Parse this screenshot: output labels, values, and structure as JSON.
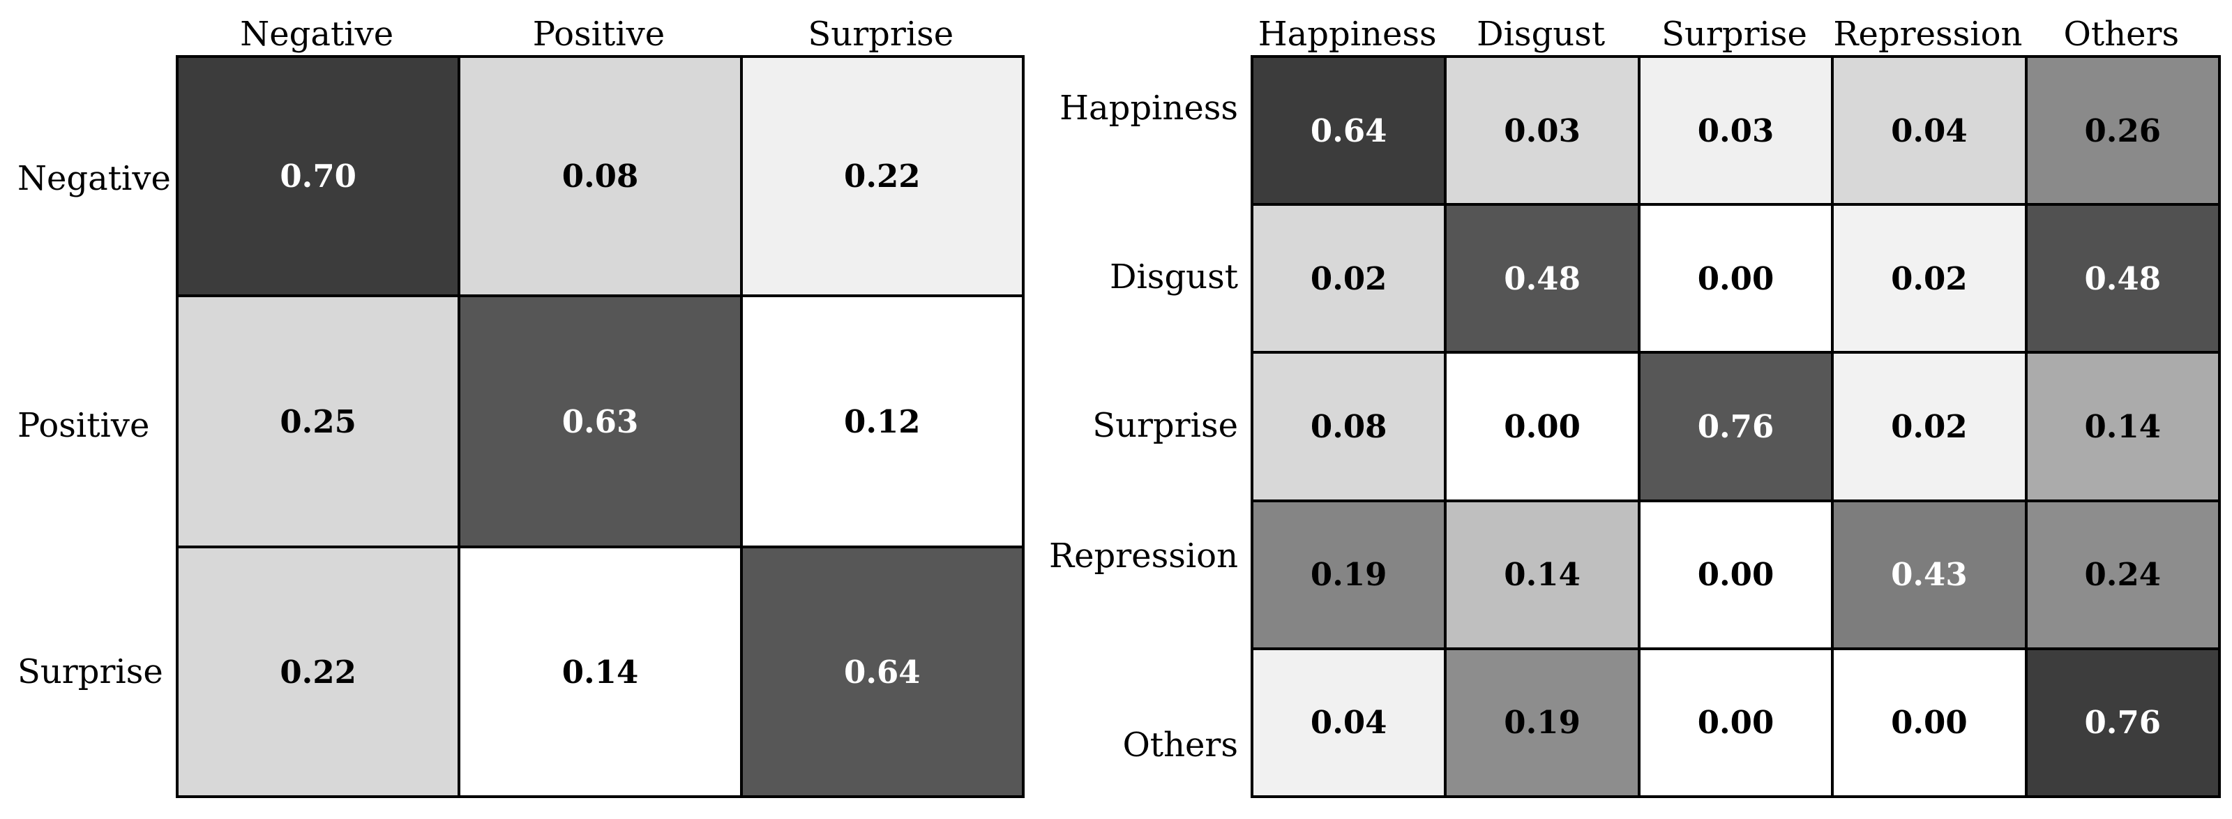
{
  "figure_type": "confusion-matrix-pair",
  "background": "#ffffff",
  "matrices": [
    {
      "name": "3-class confusion matrix",
      "col_headers": [
        "Negative",
        "Positive",
        "Surprise"
      ],
      "row_labels": [
        "Negative",
        "Positive",
        "Surprise"
      ],
      "cells": [
        [
          {
            "v": "0.70",
            "bg": "#3c3c3c",
            "fg": "#ffffff"
          },
          {
            "v": "0.08",
            "bg": "#d8d8d8",
            "fg": "#000000"
          },
          {
            "v": "0.22",
            "bg": "#f0f0f0",
            "fg": "#000000"
          }
        ],
        [
          {
            "v": "0.25",
            "bg": "#d8d8d8",
            "fg": "#000000"
          },
          {
            "v": "0.63",
            "bg": "#565656",
            "fg": "#ffffff"
          },
          {
            "v": "0.12",
            "bg": "#ffffff",
            "fg": "#000000"
          }
        ],
        [
          {
            "v": "0.22",
            "bg": "#d8d8d8",
            "fg": "#000000"
          },
          {
            "v": "0.14",
            "bg": "#ffffff",
            "fg": "#000000"
          },
          {
            "v": "0.64",
            "bg": "#575757",
            "fg": "#ffffff"
          }
        ]
      ]
    },
    {
      "name": "5-class confusion matrix",
      "col_headers": [
        "Happiness",
        "Disgust",
        "Surprise",
        "Repression",
        "Others"
      ],
      "row_labels": [
        "Happiness",
        "Disgust",
        "Surprise",
        "Repression",
        "Others"
      ],
      "cells": [
        [
          {
            "v": "0.64",
            "bg": "#3c3c3c",
            "fg": "#ffffff"
          },
          {
            "v": "0.03",
            "bg": "#d8d8d8",
            "fg": "#000000"
          },
          {
            "v": "0.03",
            "bg": "#f0f0f0",
            "fg": "#000000"
          },
          {
            "v": "0.04",
            "bg": "#d8d8d8",
            "fg": "#000000"
          },
          {
            "v": "0.26",
            "bg": "#8a8a8a",
            "fg": "#000000"
          }
        ],
        [
          {
            "v": "0.02",
            "bg": "#d8d8d8",
            "fg": "#000000"
          },
          {
            "v": "0.48",
            "bg": "#555555",
            "fg": "#ffffff"
          },
          {
            "v": "0.00",
            "bg": "#ffffff",
            "fg": "#000000"
          },
          {
            "v": "0.02",
            "bg": "#f2f2f2",
            "fg": "#000000"
          },
          {
            "v": "0.48",
            "bg": "#515151",
            "fg": "#ffffff"
          }
        ],
        [
          {
            "v": "0.08",
            "bg": "#d8d8d8",
            "fg": "#000000"
          },
          {
            "v": "0.00",
            "bg": "#ffffff",
            "fg": "#000000"
          },
          {
            "v": "0.76",
            "bg": "#575757",
            "fg": "#ffffff"
          },
          {
            "v": "0.02",
            "bg": "#f2f2f2",
            "fg": "#000000"
          },
          {
            "v": "0.14",
            "bg": "#ababab",
            "fg": "#000000"
          }
        ],
        [
          {
            "v": "0.19",
            "bg": "#858585",
            "fg": "#000000"
          },
          {
            "v": "0.14",
            "bg": "#bfbfbf",
            "fg": "#000000"
          },
          {
            "v": "0.00",
            "bg": "#ffffff",
            "fg": "#000000"
          },
          {
            "v": "0.43",
            "bg": "#7d7d7d",
            "fg": "#ffffff"
          },
          {
            "v": "0.24",
            "bg": "#8d8d8d",
            "fg": "#000000"
          }
        ],
        [
          {
            "v": "0.04",
            "bg": "#f1f1f1",
            "fg": "#000000"
          },
          {
            "v": "0.19",
            "bg": "#8d8d8d",
            "fg": "#000000"
          },
          {
            "v": "0.00",
            "bg": "#ffffff",
            "fg": "#000000"
          },
          {
            "v": "0.00",
            "bg": "#ffffff",
            "fg": "#000000"
          },
          {
            "v": "0.76",
            "bg": "#3d3d3d",
            "fg": "#ffffff"
          }
        ]
      ]
    }
  ],
  "chart_data": [
    {
      "type": "heatmap",
      "title": "",
      "x_labels": [
        "Negative",
        "Positive",
        "Surprise"
      ],
      "y_labels": [
        "Negative",
        "Positive",
        "Surprise"
      ],
      "values": [
        [
          0.7,
          0.08,
          0.22
        ],
        [
          0.25,
          0.63,
          0.12
        ],
        [
          0.22,
          0.14,
          0.64
        ]
      ],
      "value_range": [
        0,
        1
      ],
      "cell_label_format": "0.00",
      "colormap": "grayscale-darker-is-higher",
      "grid": true,
      "legend": false
    },
    {
      "type": "heatmap",
      "title": "",
      "x_labels": [
        "Happiness",
        "Disgust",
        "Surprise",
        "Repression",
        "Others"
      ],
      "y_labels": [
        "Happiness",
        "Disgust",
        "Surprise",
        "Repression",
        "Others"
      ],
      "values": [
        [
          0.64,
          0.03,
          0.03,
          0.04,
          0.26
        ],
        [
          0.02,
          0.48,
          0.0,
          0.02,
          0.48
        ],
        [
          0.08,
          0.0,
          0.76,
          0.02,
          0.14
        ],
        [
          0.19,
          0.14,
          0.0,
          0.43,
          0.24
        ],
        [
          0.04,
          0.19,
          0.0,
          0.0,
          0.76
        ]
      ],
      "value_range": [
        0,
        1
      ],
      "cell_label_format": "0.00",
      "colormap": "grayscale-darker-is-higher",
      "grid": true,
      "legend": false
    }
  ]
}
